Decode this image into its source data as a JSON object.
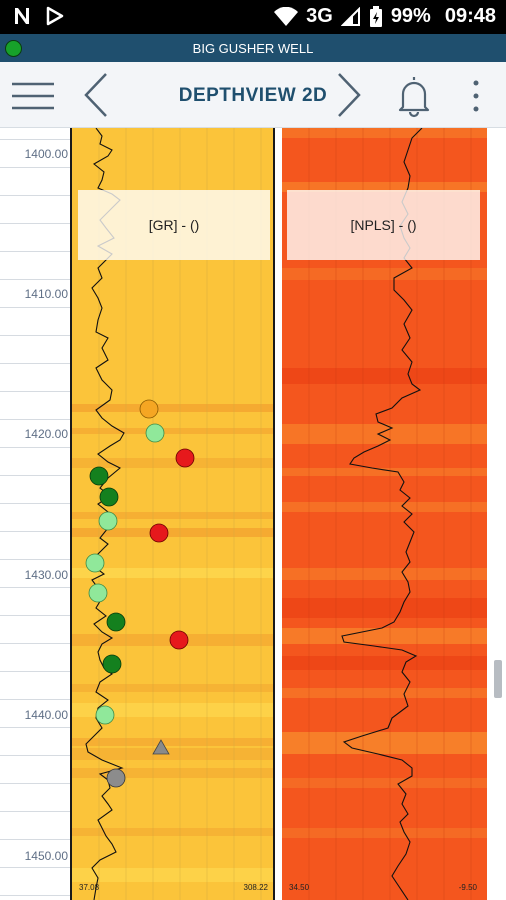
{
  "status": {
    "signal": "3G",
    "battery": "99%",
    "time": "09:48"
  },
  "well": {
    "name": "BIG GUSHER WELL",
    "status_color": "#17a12a"
  },
  "appbar": {
    "title": "DEPTHVIEW 2D"
  },
  "depth_labels": [
    "1400.00",
    "1410.00",
    "1420.00",
    "1430.00",
    "1440.00",
    "1450.00"
  ],
  "tracks": [
    {
      "header": "[GR] - ()",
      "scale_left": "37.08",
      "scale_right": "308.22"
    },
    {
      "header": "[NPLS] - ()",
      "scale_left": "34.50",
      "scale_right": "-9.50"
    }
  ],
  "colors": {
    "track1_base": "#fbc43a",
    "track2_base": "#f4561e",
    "header_bar": "#1f4f6e",
    "accent": "#1f4f6e"
  }
}
